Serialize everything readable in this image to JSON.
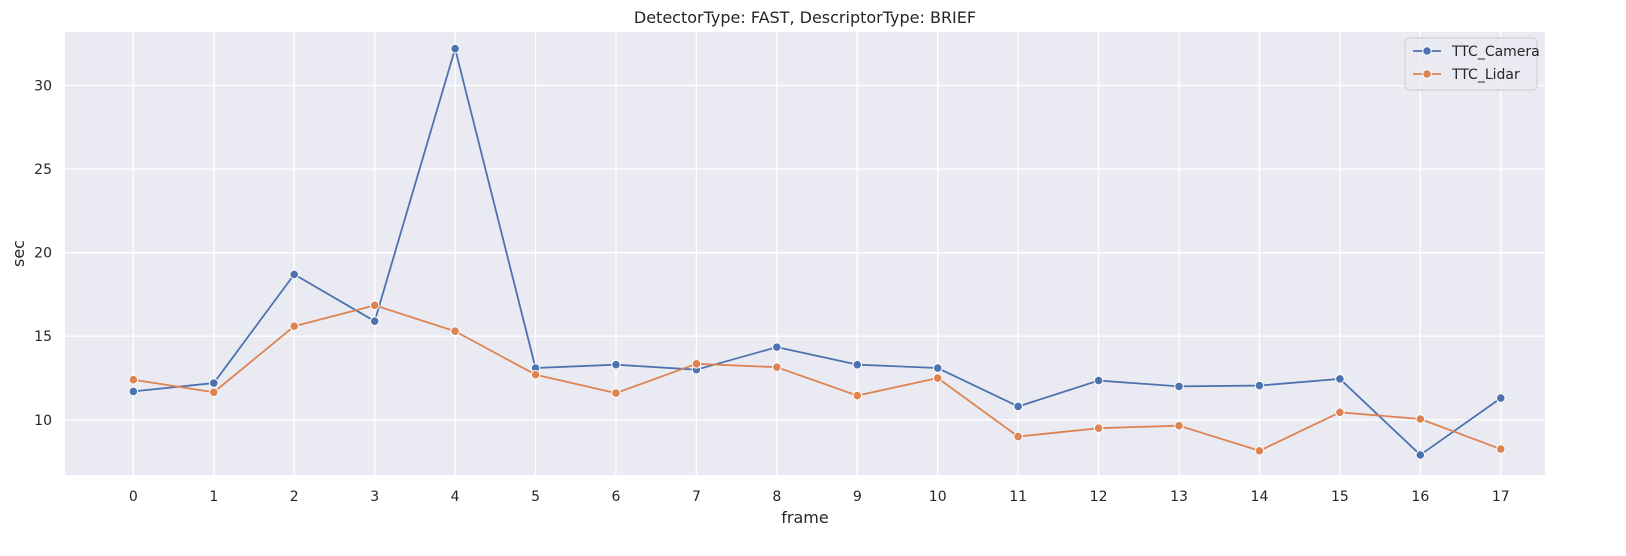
{
  "chart_data": {
    "type": "line",
    "title": "DetectorType: FAST, DescriptorType: BRIEF",
    "xlabel": "frame",
    "ylabel": "sec",
    "x": [
      0,
      1,
      2,
      3,
      4,
      5,
      6,
      7,
      8,
      9,
      10,
      11,
      12,
      13,
      14,
      15,
      16,
      17
    ],
    "xlim": [
      -0.85,
      17.55
    ],
    "ylim": [
      6.7,
      33.2
    ],
    "yticks": [
      10,
      15,
      20,
      25,
      30
    ],
    "grid": true,
    "legend_position": "top-right",
    "series": [
      {
        "name": "TTC_Camera",
        "color": "#4c72b0",
        "marker": "circle",
        "values": [
          11.7,
          12.2,
          18.7,
          15.9,
          32.2,
          13.1,
          13.3,
          13.0,
          14.35,
          13.3,
          13.1,
          10.8,
          12.35,
          12.0,
          12.05,
          12.45,
          7.9,
          11.3
        ]
      },
      {
        "name": "TTC_Lidar",
        "color": "#dd8452",
        "marker": "circle",
        "values": [
          12.4,
          11.65,
          15.6,
          16.85,
          15.3,
          12.7,
          11.6,
          13.35,
          13.15,
          11.45,
          12.5,
          9.0,
          9.5,
          9.65,
          8.15,
          10.45,
          10.05,
          8.25
        ]
      }
    ]
  },
  "style": {
    "plot_background": "#eaeaf2",
    "grid_color": "#ffffff"
  }
}
